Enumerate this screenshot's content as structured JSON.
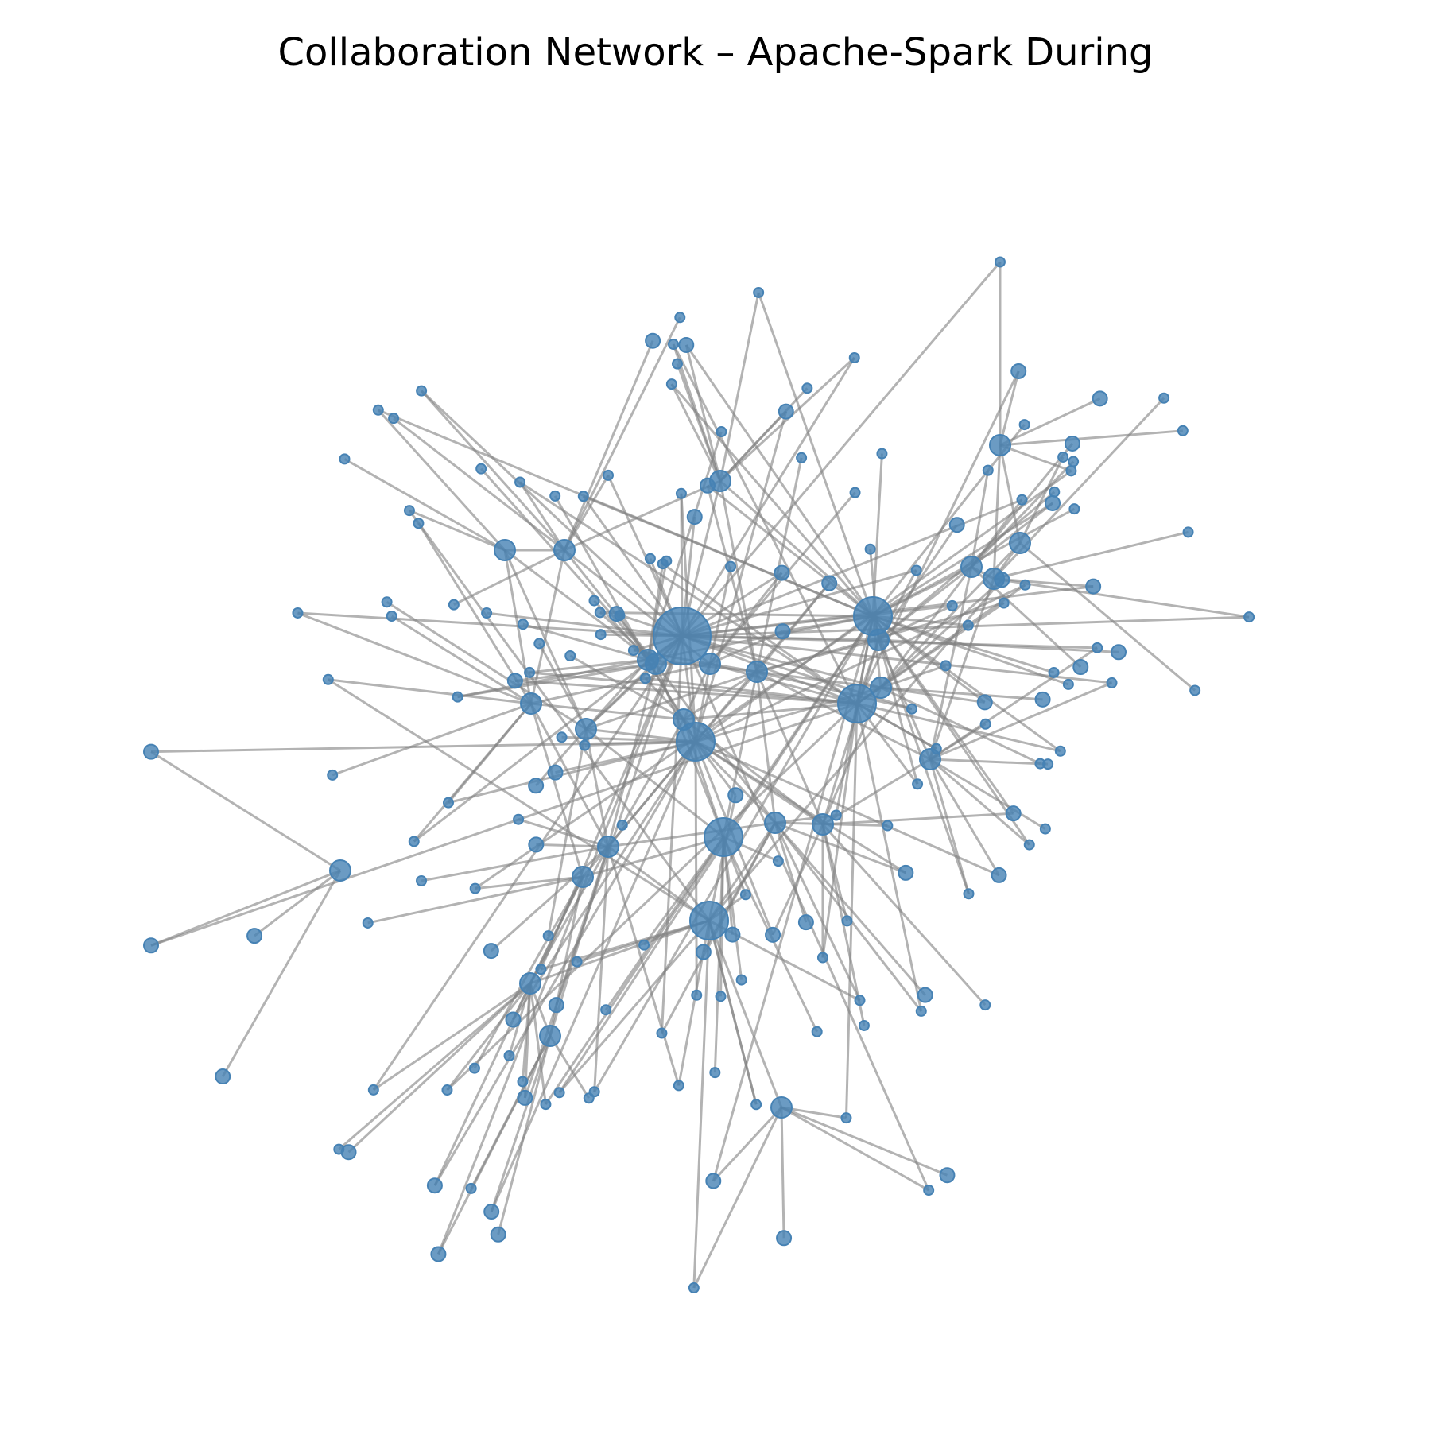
{
  "figure": {
    "title": "Collaboration Network – Apache-Spark During"
  },
  "style": {
    "node_color": "#4682b4",
    "edge_color": "#808080",
    "background": "#ffffff"
  },
  "network": {
    "nodes": [
      {
        "id": "hubA",
        "size": "xl"
      },
      {
        "id": "hubB",
        "size": "l"
      },
      {
        "id": "hubC",
        "size": "l"
      },
      {
        "id": "hubD",
        "size": "l"
      },
      {
        "id": "hubE",
        "size": "l"
      },
      {
        "id": "hubF",
        "size": "l"
      },
      {
        "id": "hubG",
        "size": "m"
      },
      {
        "id": "hubH",
        "size": "m"
      },
      {
        "id": "hubI",
        "size": "m"
      },
      {
        "id": "hubJ",
        "size": "m"
      },
      {
        "id": "hubK",
        "size": "m"
      },
      {
        "id": "hubL",
        "size": "m"
      },
      {
        "id": "hubM",
        "size": "m"
      },
      {
        "id": "hubN",
        "size": "m"
      },
      {
        "id": "hubO",
        "size": "m"
      },
      {
        "id": "hubP",
        "size": "m"
      },
      {
        "id": "hubQ",
        "size": "m"
      },
      {
        "id": "hubR",
        "size": "m"
      },
      {
        "id": "hubS",
        "size": "m"
      },
      {
        "id": "hubT",
        "size": "m"
      },
      {
        "id": "hubU",
        "size": "m"
      },
      {
        "id": "hubV",
        "size": "m"
      },
      {
        "id": "hubW",
        "size": "m"
      },
      {
        "id": "hubX",
        "size": "m"
      },
      {
        "id": "hubY",
        "size": "m"
      },
      {
        "id": "hubZ",
        "size": "m"
      },
      {
        "id": "hubAA",
        "size": "m"
      },
      {
        "id": "hubAB",
        "size": "m"
      },
      {
        "id": "hubAC",
        "size": "m"
      },
      {
        "id": "hubAD",
        "size": "m"
      },
      {
        "id": "hubAE",
        "size": "m"
      }
    ],
    "leaf_count": 175,
    "edge_count": 300
  }
}
